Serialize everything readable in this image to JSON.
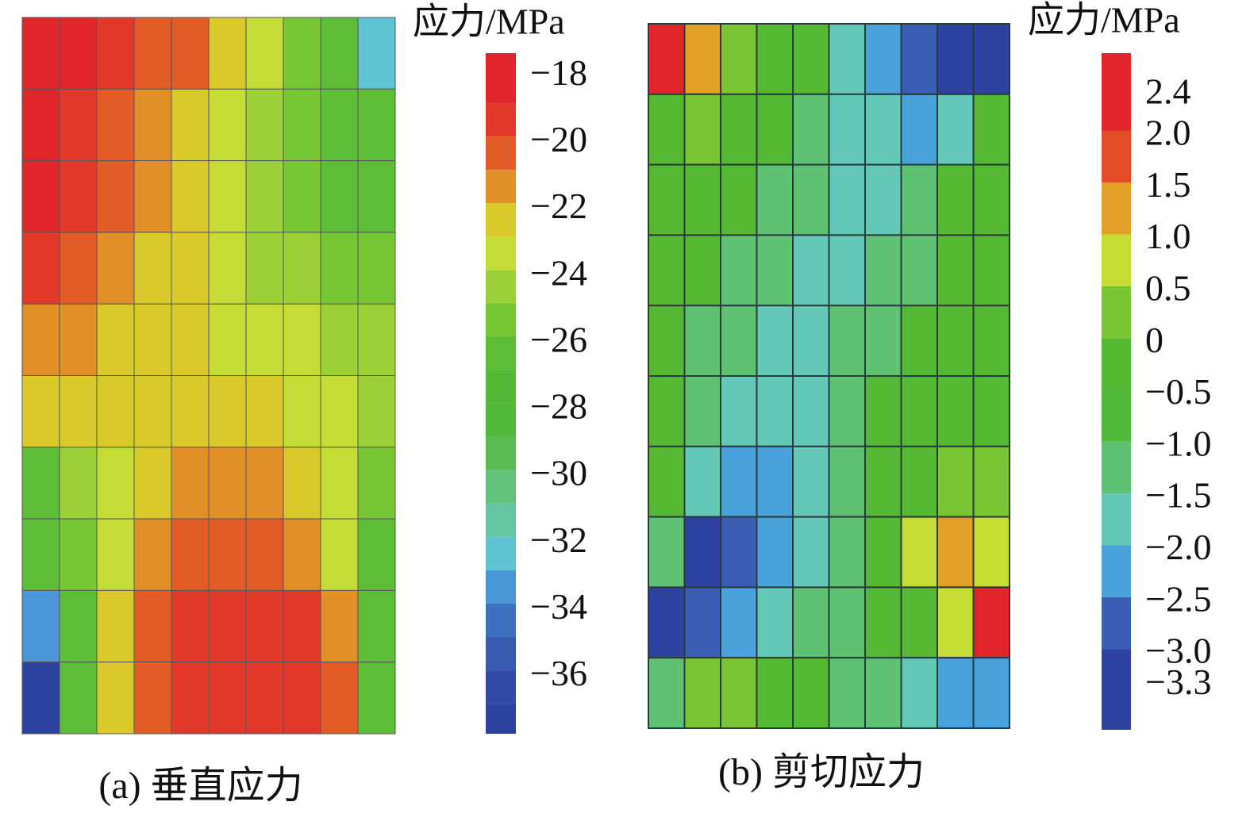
{
  "chart_data": [
    {
      "type": "heatmap",
      "title": "应力/MPa",
      "caption": "(a) 垂直应力",
      "z": [
        [
          -18,
          -18,
          -19,
          -20,
          -20,
          -22,
          -23,
          -25,
          -26,
          -32
        ],
        [
          -18,
          -19,
          -20,
          -21,
          -22,
          -23,
          -24,
          -25,
          -26,
          -26
        ],
        [
          -18,
          -19,
          -20,
          -21,
          -22,
          -23,
          -24,
          -25,
          -26,
          -26
        ],
        [
          -19,
          -20,
          -21,
          -22,
          -22,
          -23,
          -24,
          -24,
          -25,
          -25
        ],
        [
          -21,
          -21,
          -22,
          -22,
          -22,
          -23,
          -23,
          -23,
          -24,
          -24
        ],
        [
          -22,
          -22,
          -22,
          -22,
          -22,
          -22,
          -22,
          -23,
          -23,
          -24
        ],
        [
          -26,
          -24,
          -23,
          -22,
          -21,
          -21,
          -21,
          -22,
          -23,
          -25
        ],
        [
          -26,
          -25,
          -23,
          -21,
          -20,
          -20,
          -20,
          -21,
          -23,
          -26
        ],
        [
          -33,
          -26,
          -22,
          -20,
          -19,
          -19,
          -19,
          -19,
          -21,
          -26
        ],
        [
          -37,
          -26,
          -22,
          -20,
          -19,
          -19,
          -19,
          -19,
          -20,
          -26
        ]
      ],
      "colorbar": {
        "lim": [
          -37.7,
          -17.3
        ],
        "levels": [
          -36.8,
          -35.8,
          -34.8,
          -33.8,
          -32.8,
          -31.8,
          -30.8,
          -29.8,
          -28.8,
          -27.8,
          -26.8,
          -25.8,
          -24.8,
          -23.8,
          -22.8,
          -21.8,
          -20.8,
          -19.8,
          -18.8
        ],
        "colors": [
          "#2e42a0",
          "#3249a5",
          "#3759ae",
          "#3d70bf",
          "#4a96d6",
          "#5ec3d3",
          "#66c6a4",
          "#62c17a",
          "#5aba52",
          "#50b83a",
          "#53b937",
          "#5dbd36",
          "#77c634",
          "#9bd036",
          "#c4dd36",
          "#d9c92b",
          "#e18f27",
          "#e35b27",
          "#e2392a",
          "#e1262b"
        ],
        "ticks": [
          {
            "value": -18,
            "label": "−18"
          },
          {
            "value": -20,
            "label": "−20"
          },
          {
            "value": -22,
            "label": "−22"
          },
          {
            "value": -24,
            "label": "−24"
          },
          {
            "value": -26,
            "label": "−26"
          },
          {
            "value": -28,
            "label": "−28"
          },
          {
            "value": -30,
            "label": "−30"
          },
          {
            "value": -32,
            "label": "−32"
          },
          {
            "value": -34,
            "label": "−34"
          },
          {
            "value": -36,
            "label": "−36"
          }
        ]
      }
    },
    {
      "type": "heatmap",
      "title": "应力/MPa",
      "caption": "(b) 剪切应力",
      "z": [
        [
          2.4,
          1.2,
          0.2,
          -0.3,
          -0.3,
          -1.7,
          -2.2,
          -2.8,
          -3.3,
          -3.2
        ],
        [
          -0.3,
          0.2,
          -0.3,
          -0.3,
          -1.2,
          -1.7,
          -1.7,
          -2.2,
          -1.7,
          -0.3
        ],
        [
          -0.3,
          -0.3,
          -0.3,
          -1.2,
          -1.2,
          -1.7,
          -1.7,
          -1.2,
          -0.3,
          -0.3
        ],
        [
          -0.3,
          -0.3,
          -1.2,
          -1.2,
          -1.7,
          -1.7,
          -1.2,
          -1.2,
          -0.3,
          -0.3
        ],
        [
          -0.3,
          -1.2,
          -1.2,
          -1.7,
          -1.7,
          -1.2,
          -1.2,
          -0.3,
          -0.3,
          -0.3
        ],
        [
          -0.3,
          -1.2,
          -1.7,
          -1.7,
          -1.7,
          -1.2,
          -0.3,
          -0.3,
          -0.3,
          -0.3
        ],
        [
          -0.3,
          -1.7,
          -2.2,
          -2.2,
          -1.7,
          -1.2,
          -0.3,
          -0.3,
          0.2,
          0.2
        ],
        [
          -1.2,
          -3.3,
          -2.8,
          -2.2,
          -1.7,
          -1.2,
          -0.3,
          0.7,
          1.2,
          0.7
        ],
        [
          -3.3,
          -2.8,
          -2.2,
          -1.7,
          -1.2,
          -1.2,
          -0.3,
          -0.3,
          0.7,
          2.4
        ],
        [
          -1.2,
          0.2,
          0.2,
          -0.3,
          -0.3,
          -1.2,
          -1.2,
          -1.7,
          -2.2,
          -2.2
        ]
      ],
      "colorbar": {
        "lim": [
          -3.78,
          2.75
        ],
        "levels": [
          -3.0,
          -2.5,
          -2.0,
          -1.5,
          -1.0,
          -0.5,
          0,
          0.5,
          1.0,
          1.5,
          2.0
        ],
        "colors": [
          "#2e42a0",
          "#3a5eb4",
          "#4aa2dc",
          "#63c8b8",
          "#5ec272",
          "#52b83b",
          "#55b933",
          "#79c533",
          "#c6dd36",
          "#e2a027",
          "#e24d27",
          "#e0262b"
        ],
        "ticks": [
          2.4,
          {
            "value": 2,
            "label": "2.0"
          },
          1.5,
          {
            "value": 1,
            "label": "1.0"
          },
          0.5,
          0,
          {
            "value": -0.5,
            "label": "−0.5"
          },
          {
            "value": -1,
            "label": "−1.0"
          },
          {
            "value": -1.5,
            "label": "−1.5"
          },
          {
            "value": -2,
            "label": "−2.0"
          },
          {
            "value": -2.5,
            "label": "−2.5"
          },
          {
            "value": -3,
            "label": "−3.0"
          },
          {
            "value": -3.3,
            "label": "−3.3"
          }
        ]
      }
    }
  ]
}
